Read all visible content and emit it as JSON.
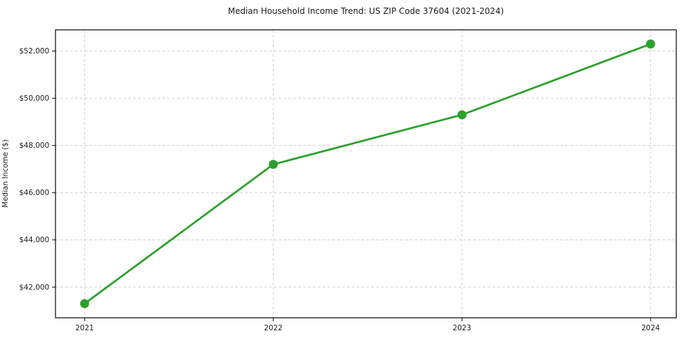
{
  "chart_data": {
    "type": "line",
    "title": "Median Household Income Trend: US ZIP Code 37604 (2021-2024)",
    "ylabel": "Median Income ($)",
    "xlabel": "",
    "x": [
      2021,
      2022,
      2023,
      2024
    ],
    "x_tick_labels": [
      "2021",
      "2022",
      "2023",
      "2024"
    ],
    "values": [
      41300,
      47200,
      49300,
      52300
    ],
    "y_ticks": [
      42000,
      44000,
      46000,
      48000,
      50000,
      52000
    ],
    "y_tick_labels": [
      "$42,000",
      "$44,000",
      "$46,000",
      "$48,000",
      "$50,000",
      "$52,000"
    ],
    "ylim": [
      40700,
      52900
    ],
    "grid": "dashed-both-axes",
    "legend": "none",
    "marker": "circle"
  },
  "colors": {
    "line": "#2ca02c",
    "marker": "#2ca02c",
    "grid": "#cfcfcf",
    "axis_border": "#000000",
    "tick_text": "#1a1a1a",
    "background": "#ffffff"
  }
}
